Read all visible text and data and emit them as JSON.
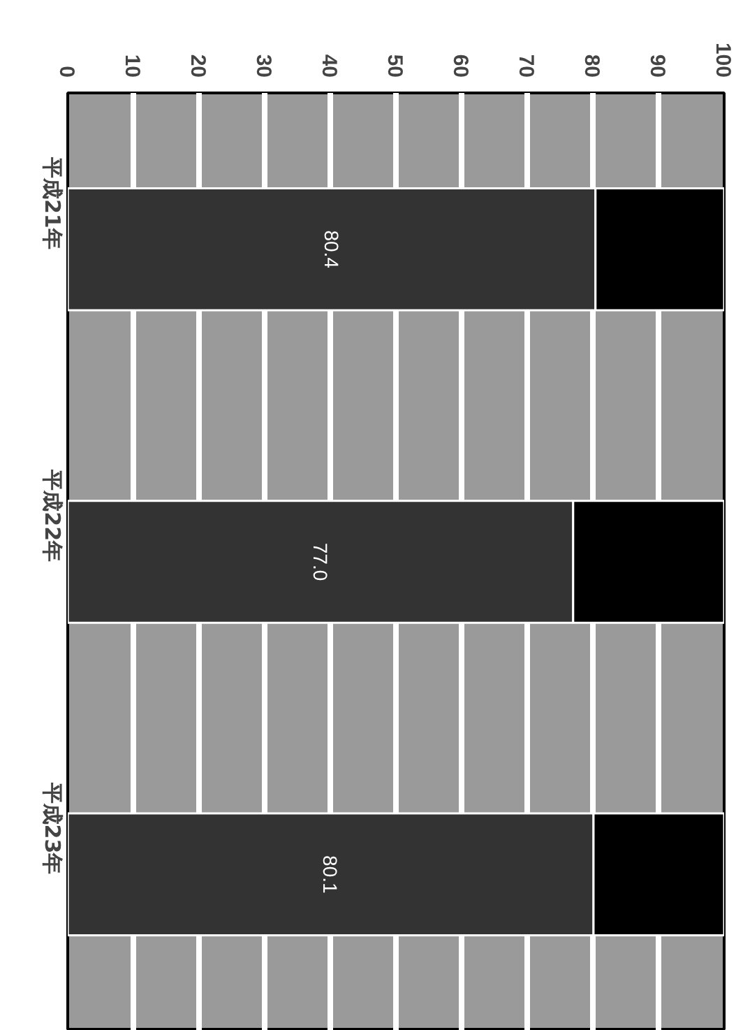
{
  "chart_data": {
    "type": "bar",
    "orientation": "horizontal",
    "stacked": true,
    "categories": [
      "平成21年",
      "平成22年",
      "平成23年"
    ],
    "series": [
      {
        "color": "#333333",
        "values": [
          80.4,
          77.0,
          80.1
        ],
        "value_labels": [
          "80.4",
          "77.0",
          "80.1"
        ]
      },
      {
        "color": "#000000",
        "values": [
          19.6,
          23.0,
          19.9
        ]
      }
    ],
    "xlim": [
      0,
      100
    ],
    "xticks": [
      0,
      10,
      20,
      30,
      40,
      50,
      60,
      70,
      80,
      90,
      100
    ],
    "grid": "x"
  }
}
